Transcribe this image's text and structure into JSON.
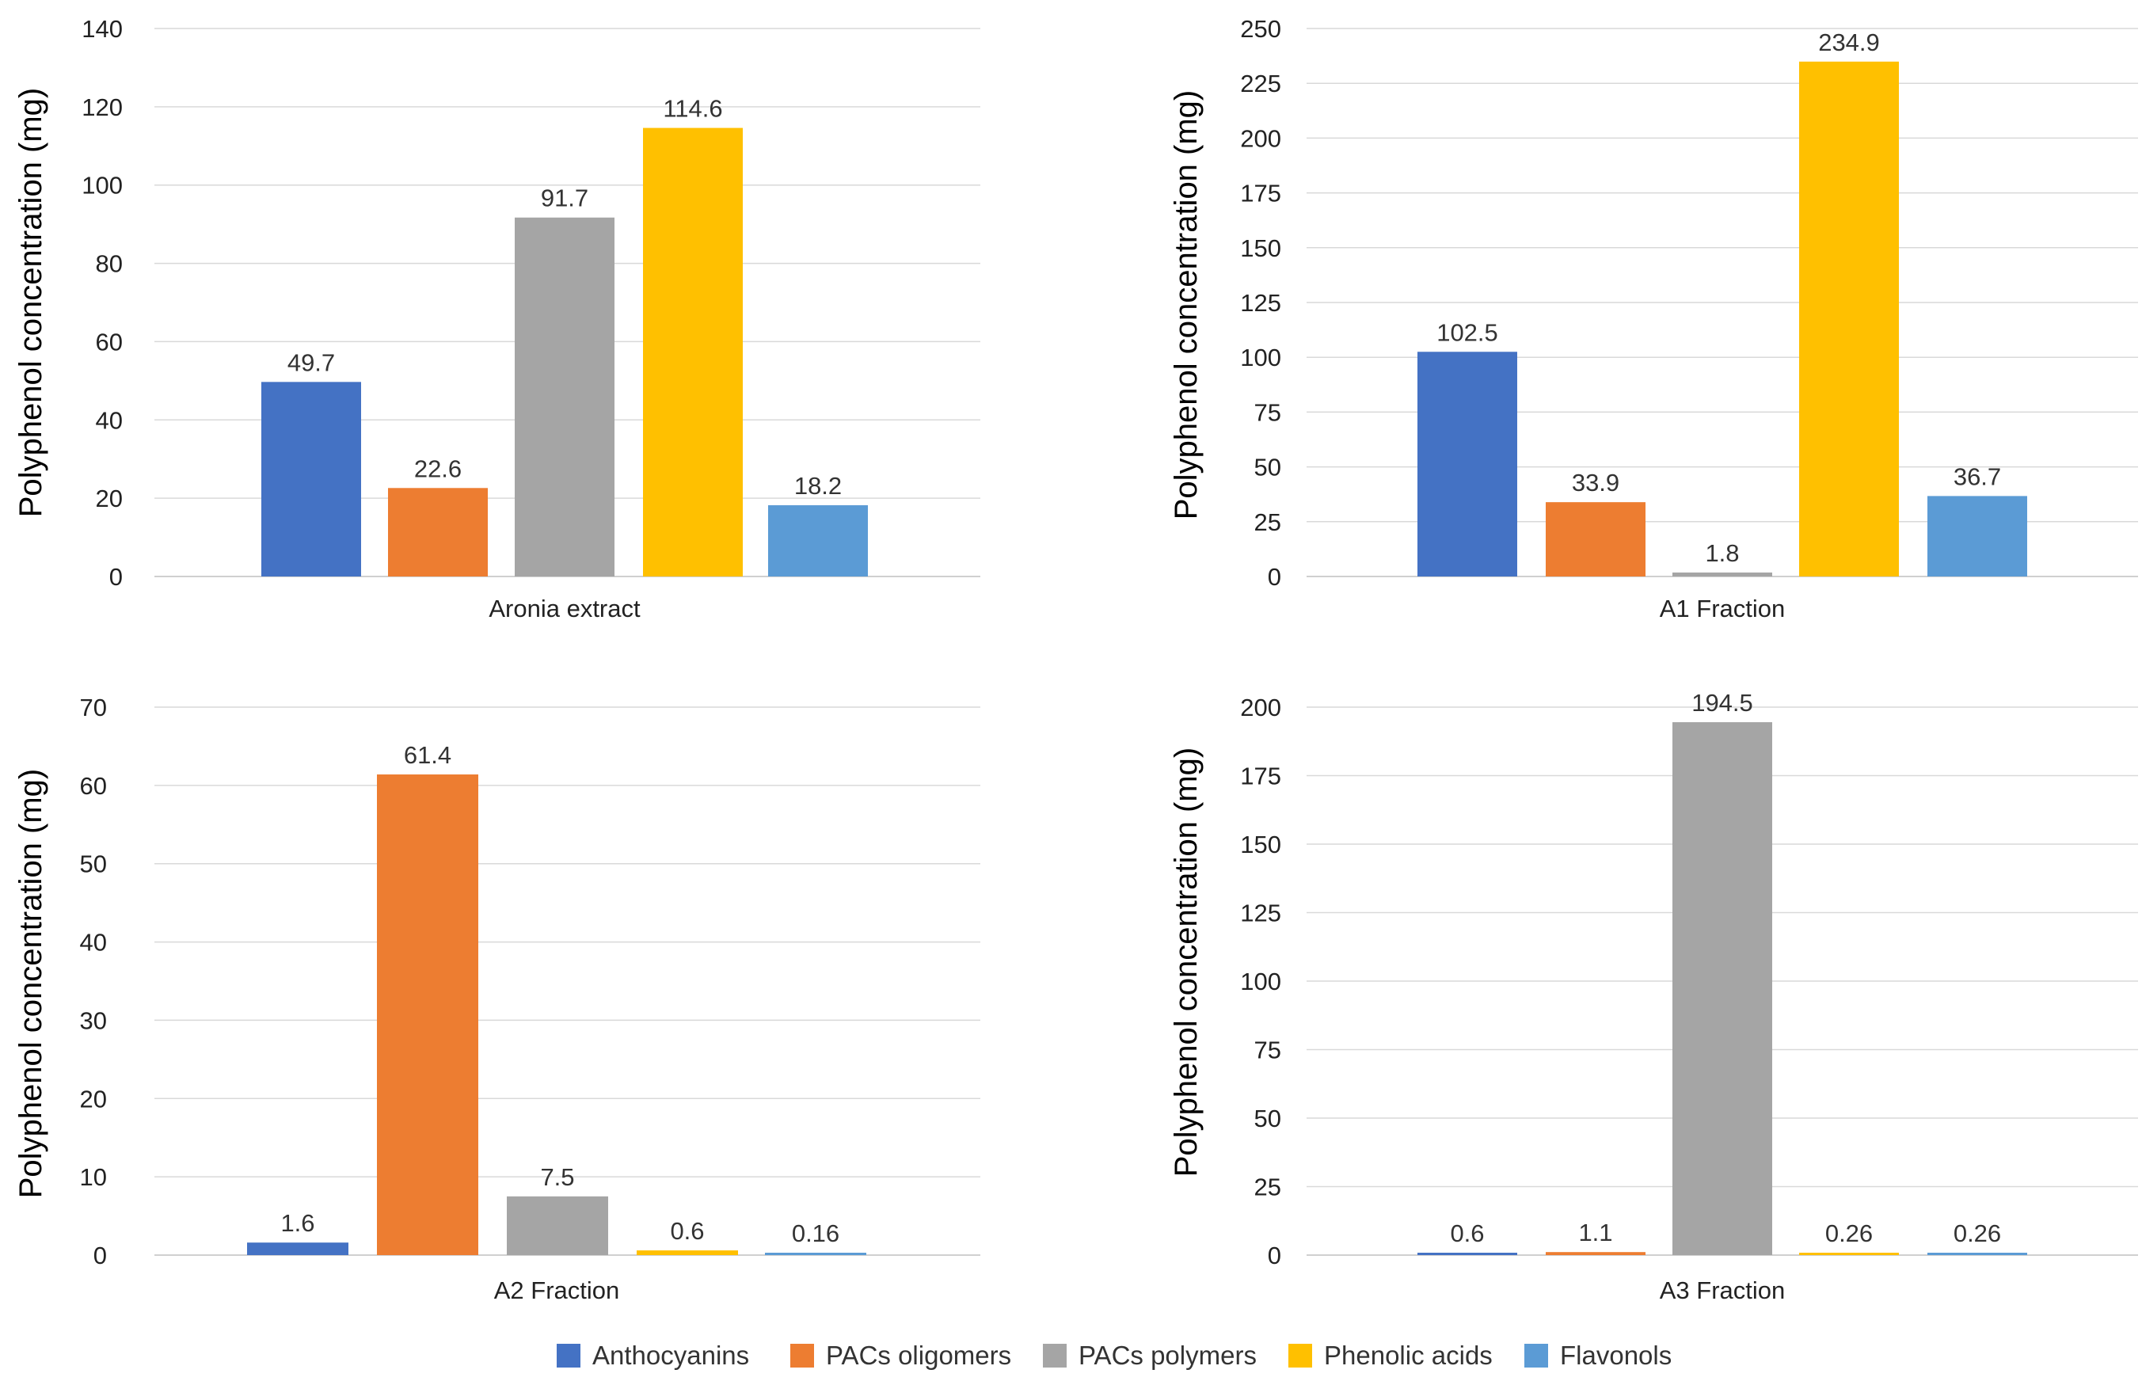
{
  "chart_data": [
    {
      "type": "bar",
      "ylabel": "Polyphenol concentration (mg)",
      "xlabel": "",
      "categories": [
        "Aronia extract"
      ],
      "ylim": [
        0,
        140
      ],
      "yticks": [
        0,
        20,
        40,
        60,
        80,
        100,
        120,
        140
      ],
      "series": [
        {
          "name": "Anthocyanins",
          "values": [
            49.7
          ],
          "labels": [
            "49.7"
          ]
        },
        {
          "name": "PACs oligomers",
          "values": [
            22.6
          ],
          "labels": [
            "22.6"
          ]
        },
        {
          "name": "PACs polymers",
          "values": [
            91.7
          ],
          "labels": [
            "91.7"
          ]
        },
        {
          "name": "Phenolic acids",
          "values": [
            114.6
          ],
          "labels": [
            "114.6"
          ]
        },
        {
          "name": "Flavonols",
          "values": [
            18.2
          ],
          "labels": [
            "18.2"
          ]
        }
      ],
      "grid": true
    },
    {
      "type": "bar",
      "ylabel": "Polyphenol concentration (mg)",
      "xlabel": "",
      "categories": [
        "A1 Fraction"
      ],
      "ylim": [
        0,
        250
      ],
      "yticks": [
        0,
        25,
        50,
        75,
        100,
        125,
        150,
        175,
        200,
        225,
        250
      ],
      "series": [
        {
          "name": "Anthocyanins",
          "values": [
            102.5
          ],
          "labels": [
            "102.5"
          ]
        },
        {
          "name": "PACs oligomers",
          "values": [
            33.9
          ],
          "labels": [
            "33.9"
          ]
        },
        {
          "name": "PACs polymers",
          "values": [
            1.8
          ],
          "labels": [
            "1.8"
          ]
        },
        {
          "name": "Phenolic acids",
          "values": [
            234.9
          ],
          "labels": [
            "234.9"
          ]
        },
        {
          "name": "Flavonols",
          "values": [
            36.7
          ],
          "labels": [
            "36.7"
          ]
        }
      ],
      "grid": true
    },
    {
      "type": "bar",
      "ylabel": "Polyphenol concentration (mg)",
      "xlabel": "",
      "categories": [
        "A2 Fraction"
      ],
      "ylim": [
        0,
        70
      ],
      "yticks": [
        0,
        10,
        20,
        30,
        40,
        50,
        60,
        70
      ],
      "series": [
        {
          "name": "Anthocyanins",
          "values": [
            1.6
          ],
          "labels": [
            "1.6"
          ]
        },
        {
          "name": "PACs oligomers",
          "values": [
            61.4
          ],
          "labels": [
            "61.4"
          ]
        },
        {
          "name": "PACs polymers",
          "values": [
            7.5
          ],
          "labels": [
            "7.5"
          ]
        },
        {
          "name": "Phenolic acids",
          "values": [
            0.6
          ],
          "labels": [
            "0.6"
          ]
        },
        {
          "name": "Flavonols",
          "values": [
            0.16
          ],
          "labels": [
            "0.16"
          ]
        }
      ],
      "grid": true
    },
    {
      "type": "bar",
      "ylabel": "Polyphenol concentration (mg)",
      "xlabel": "",
      "categories": [
        "A3 Fraction"
      ],
      "ylim": [
        0,
        200
      ],
      "yticks": [
        0,
        25,
        50,
        75,
        100,
        125,
        150,
        175,
        200
      ],
      "series": [
        {
          "name": "Anthocyanins",
          "values": [
            0.6
          ],
          "labels": [
            "0.6"
          ]
        },
        {
          "name": "PACs oligomers",
          "values": [
            1.1
          ],
          "labels": [
            "1.1"
          ]
        },
        {
          "name": "PACs polymers",
          "values": [
            194.5
          ],
          "labels": [
            "194.5"
          ]
        },
        {
          "name": "Phenolic acids",
          "values": [
            0.26
          ],
          "labels": [
            "0.26"
          ]
        },
        {
          "name": "Flavonols",
          "values": [
            0.26
          ],
          "labels": [
            "0.26"
          ]
        }
      ],
      "grid": true
    }
  ],
  "legend": {
    "position": "bottom",
    "items": [
      {
        "name": "Anthocyanins",
        "color": "#4472C4"
      },
      {
        "name": "PACs oligomers",
        "color": "#ED7D31"
      },
      {
        "name": "PACs polymers",
        "color": "#A5A5A5"
      },
      {
        "name": "Phenolic acids",
        "color": "#FFC000"
      },
      {
        "name": "Flavonols",
        "color": "#5B9BD5"
      }
    ]
  }
}
